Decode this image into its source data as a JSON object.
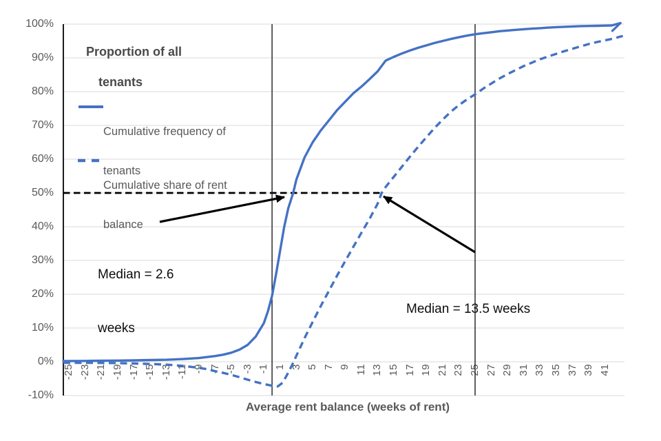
{
  "plot_title": {
    "line1": "Proportion of all",
    "line2": "tenants"
  },
  "x_axis": {
    "title": "Average rent balance (weeks of rent)",
    "tick_labels": [
      "-25",
      "-23",
      "-21",
      "-19",
      "-17",
      "-15",
      "-13",
      "-11",
      "-9",
      "-7",
      "-5",
      "-3",
      "-1",
      "1",
      "3",
      "5",
      "7",
      "9",
      "11",
      "13",
      "15",
      "17",
      "19",
      "21",
      "23",
      "25",
      "27",
      "29",
      "31",
      "33",
      "35",
      "37",
      "39",
      "41"
    ]
  },
  "y_axis": {
    "tick_labels": [
      "100%",
      "90%",
      "80%",
      "70%",
      "60%",
      "50%",
      "40%",
      "30%",
      "20%",
      "10%",
      "0%",
      "-10%"
    ]
  },
  "legend": {
    "entries": [
      {
        "swatch": "solid-line",
        "line1": "Cumulative frequency of",
        "line2": "tenants"
      },
      {
        "swatch": "dashed-line",
        "line1": "Cumulative share of rent",
        "line2": "balance"
      }
    ]
  },
  "annotations": {
    "median_frequency": {
      "line1": "Median = 2.6",
      "line2": "weeks"
    },
    "median_share": {
      "line1": "Median = 13.5 weeks"
    }
  },
  "colors": {
    "series_blue": "#4472C4",
    "grid": "#D9D9D9",
    "axis_text": "#595959",
    "title_text": "#4A4A4A",
    "annotation_black": "#000000"
  },
  "chart_data": {
    "type": "line",
    "title": "Proportion of all tenants",
    "xlabel": "Average rent balance (weeks of rent)",
    "ylabel": "Proportion of all tenants (%)",
    "xlim": [
      -25.7,
      43.4
    ],
    "ylim": [
      -10,
      100
    ],
    "x_tick_values": [
      -25,
      -23,
      -21,
      -19,
      -17,
      -15,
      -13,
      -11,
      -9,
      -7,
      -5,
      -3,
      -1,
      1,
      3,
      5,
      7,
      9,
      11,
      13,
      15,
      17,
      19,
      21,
      23,
      25,
      27,
      29,
      31,
      33,
      35,
      37,
      39,
      41
    ],
    "y_tick_values": [
      100,
      90,
      80,
      70,
      60,
      50,
      40,
      30,
      20,
      10,
      0,
      -10
    ],
    "grid": "horizontal",
    "legend_position": "inside-top-left",
    "medians": {
      "cumulative_frequency_weeks": 2.6,
      "cumulative_share_weeks": 13.5
    },
    "reference_lines": [
      {
        "orientation": "horizontal",
        "value": 50,
        "style": "dashed",
        "color": "#000000",
        "x_end": 13.5
      },
      {
        "orientation": "vertical",
        "value": 0,
        "style": "solid",
        "color": "#1a1a1a"
      },
      {
        "orientation": "vertical",
        "value": 25,
        "style": "solid",
        "color": "#1a1a1a"
      }
    ],
    "series": [
      {
        "name": "Cumulative frequency of tenants",
        "color": "#4472C4",
        "line_style": "solid",
        "points": [
          [
            -25.7,
            0.2
          ],
          [
            -23,
            0.25
          ],
          [
            -21,
            0.3
          ],
          [
            -19,
            0.35
          ],
          [
            -17,
            0.4
          ],
          [
            -15,
            0.5
          ],
          [
            -13,
            0.6
          ],
          [
            -11,
            0.8
          ],
          [
            -9,
            1.1
          ],
          [
            -7,
            1.7
          ],
          [
            -6,
            2.1
          ],
          [
            -5,
            2.7
          ],
          [
            -4,
            3.6
          ],
          [
            -3,
            5.0
          ],
          [
            -2,
            7.5
          ],
          [
            -1,
            11.5
          ],
          [
            -0.5,
            15.0
          ],
          [
            0,
            19.5
          ],
          [
            0.5,
            26.0
          ],
          [
            1,
            33.0
          ],
          [
            1.5,
            40.0
          ],
          [
            2,
            45.5
          ],
          [
            2.6,
            50.0
          ],
          [
            3,
            54.0
          ],
          [
            4,
            60.5
          ],
          [
            5,
            65.0
          ],
          [
            6,
            68.5
          ],
          [
            7,
            71.5
          ],
          [
            8,
            74.5
          ],
          [
            9,
            77.0
          ],
          [
            10,
            79.5
          ],
          [
            11,
            81.5
          ],
          [
            12,
            83.7
          ],
          [
            13,
            86.0
          ],
          [
            14,
            89.2
          ],
          [
            15,
            90.3
          ],
          [
            16,
            91.3
          ],
          [
            17,
            92.2
          ],
          [
            18,
            93.0
          ],
          [
            19,
            93.7
          ],
          [
            20,
            94.4
          ],
          [
            21,
            95.0
          ],
          [
            22,
            95.6
          ],
          [
            23,
            96.1
          ],
          [
            24,
            96.6
          ],
          [
            25,
            97.0
          ],
          [
            26,
            97.3
          ],
          [
            27,
            97.6
          ],
          [
            28,
            97.9
          ],
          [
            29,
            98.1
          ],
          [
            30,
            98.3
          ],
          [
            31,
            98.5
          ],
          [
            32,
            98.65
          ],
          [
            33,
            98.8
          ],
          [
            34,
            98.95
          ],
          [
            35,
            99.1
          ],
          [
            36,
            99.2
          ],
          [
            37,
            99.3
          ],
          [
            38,
            99.4
          ],
          [
            39,
            99.45
          ],
          [
            40,
            99.5
          ],
          [
            41,
            99.55
          ],
          [
            41.8,
            99.6
          ],
          [
            42.9,
            100.3
          ]
        ],
        "end_barb": [
          [
            42.9,
            100.3
          ],
          [
            41.9,
            98.0
          ]
        ]
      },
      {
        "name": "Cumulative share of rent balance",
        "color": "#4472C4",
        "line_style": "dashed",
        "points": [
          [
            -25.7,
            -0.3
          ],
          [
            -23,
            -0.3
          ],
          [
            -21,
            -0.35
          ],
          [
            -19,
            -0.4
          ],
          [
            -17,
            -0.5
          ],
          [
            -15,
            -0.65
          ],
          [
            -13,
            -0.85
          ],
          [
            -11,
            -1.2
          ],
          [
            -9,
            -1.8
          ],
          [
            -8,
            -2.2
          ],
          [
            -7,
            -2.8
          ],
          [
            -6,
            -3.3
          ],
          [
            -5,
            -3.9
          ],
          [
            -4,
            -4.6
          ],
          [
            -3,
            -5.3
          ],
          [
            -2,
            -6.0
          ],
          [
            -1,
            -6.6
          ],
          [
            0,
            -7.1
          ],
          [
            0.7,
            -7.3
          ],
          [
            1.3,
            -6.2
          ],
          [
            2,
            -3.2
          ],
          [
            2.5,
            -0.8
          ],
          [
            3,
            1.8
          ],
          [
            4,
            7.0
          ],
          [
            5,
            11.8
          ],
          [
            6,
            16.5
          ],
          [
            7,
            21.0
          ],
          [
            8,
            25.5
          ],
          [
            9,
            29.8
          ],
          [
            10,
            34.0
          ],
          [
            11,
            38.2
          ],
          [
            12,
            42.3
          ],
          [
            13,
            46.8
          ],
          [
            13.5,
            50.0
          ],
          [
            14,
            51.8
          ],
          [
            15,
            54.8
          ],
          [
            16,
            57.8
          ],
          [
            17,
            60.8
          ],
          [
            18,
            63.7
          ],
          [
            19,
            66.5
          ],
          [
            20,
            69.2
          ],
          [
            21,
            71.7
          ],
          [
            22,
            74.0
          ],
          [
            23,
            76.0
          ],
          [
            24,
            77.7
          ],
          [
            25,
            79.2
          ],
          [
            26,
            80.9
          ],
          [
            27,
            82.4
          ],
          [
            28,
            83.9
          ],
          [
            29,
            85.2
          ],
          [
            30,
            86.4
          ],
          [
            31,
            87.6
          ],
          [
            32,
            88.6
          ],
          [
            33,
            89.6
          ],
          [
            34,
            90.4
          ],
          [
            35,
            91.2
          ],
          [
            36,
            92.0
          ],
          [
            37,
            92.7
          ],
          [
            38,
            93.4
          ],
          [
            39,
            94.1
          ],
          [
            40,
            94.7
          ],
          [
            41,
            95.2
          ],
          [
            42,
            95.7
          ],
          [
            43.2,
            96.5
          ]
        ]
      }
    ]
  }
}
